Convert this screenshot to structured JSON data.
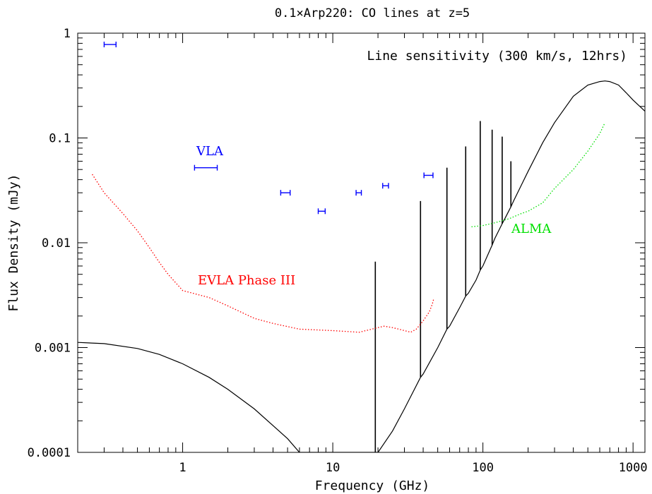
{
  "chart_data": {
    "type": "line",
    "title": "0.1×Arp220:  CO lines at z=5",
    "xlabel": "Frequency (GHz)",
    "ylabel": "Flux Density (mJy)",
    "xscale": "log",
    "yscale": "log",
    "xlim": [
      0.2,
      1200
    ],
    "ylim": [
      0.0001,
      1
    ],
    "xticks": [
      {
        "value": 1,
        "label": "1"
      },
      {
        "value": 10,
        "label": "10"
      },
      {
        "value": 100,
        "label": "100"
      },
      {
        "value": 1000,
        "label": "1000"
      }
    ],
    "yticks": [
      {
        "value": 0.0001,
        "label": "0.0001"
      },
      {
        "value": 0.001,
        "label": "0.001"
      },
      {
        "value": 0.01,
        "label": "0.01"
      },
      {
        "value": 0.1,
        "label": "0.1"
      },
      {
        "value": 1,
        "label": "1"
      }
    ],
    "annotation": "Line sensitivity (300 km/s, 12hrs)",
    "colors": {
      "model": "#000000",
      "vla": "#0000ff",
      "evla": "#ff0000",
      "alma": "#00e000"
    },
    "series": [
      {
        "key": "model",
        "style": "solid",
        "x": [
          0.2,
          0.3,
          0.5,
          0.7,
          1,
          1.5,
          2,
          3,
          4,
          5,
          6,
          8,
          10,
          12,
          15,
          18,
          19.2,
          20,
          25,
          30,
          38.4,
          40,
          50,
          57.6,
          60,
          70,
          76.8,
          80,
          90,
          96,
          100,
          115.2,
          120,
          134.4,
          140,
          153.6,
          160,
          200,
          250,
          300,
          400,
          500,
          600,
          650,
          700,
          800,
          900,
          1000,
          1200
        ],
        "y": [
          0.00112,
          0.00109,
          0.00098,
          0.00086,
          0.0007,
          0.00052,
          0.0004,
          0.00026,
          0.00018,
          0.000135,
          0.0001,
          0.0001,
          0.0001,
          0.0001,
          0.0001,
          0.0001,
          0.0001,
          0.0001,
          0.00016,
          0.00026,
          0.00052,
          0.00056,
          0.001,
          0.0015,
          0.0016,
          0.0024,
          0.0031,
          0.0033,
          0.0044,
          0.0055,
          0.006,
          0.0095,
          0.011,
          0.0152,
          0.017,
          0.022,
          0.025,
          0.048,
          0.09,
          0.14,
          0.25,
          0.32,
          0.345,
          0.35,
          0.345,
          0.32,
          0.27,
          0.23,
          0.18
        ],
        "lines": [
          {
            "x": 19.2,
            "peak": 0.0066
          },
          {
            "x": 38.4,
            "peak": 0.025
          },
          {
            "x": 57.6,
            "peak": 0.052
          },
          {
            "x": 76.8,
            "peak": 0.083
          },
          {
            "x": 96,
            "peak": 0.145
          },
          {
            "x": 115.2,
            "peak": 0.12
          },
          {
            "x": 134.4,
            "peak": 0.103
          },
          {
            "x": 153.6,
            "peak": 0.06
          }
        ]
      },
      {
        "key": "vla",
        "label": "VLA",
        "style": "errorbars",
        "points": [
          {
            "x": 0.33,
            "xlo": 0.3,
            "xhi": 0.36,
            "y": 0.78
          },
          {
            "x": 1.43,
            "xlo": 1.2,
            "xhi": 1.7,
            "y": 0.052
          },
          {
            "x": 4.86,
            "xlo": 4.5,
            "xhi": 5.2,
            "y": 0.03
          },
          {
            "x": 8.46,
            "xlo": 8.0,
            "xhi": 8.9,
            "y": 0.02
          },
          {
            "x": 14.9,
            "xlo": 14.3,
            "xhi": 15.5,
            "y": 0.03
          },
          {
            "x": 22.5,
            "xlo": 21.5,
            "xhi": 23.5,
            "y": 0.035
          },
          {
            "x": 43.3,
            "xlo": 40.5,
            "xhi": 46.5,
            "y": 0.044
          }
        ]
      },
      {
        "key": "evla",
        "label": "EVLA Phase III",
        "style": "dotted",
        "x": [
          0.25,
          0.3,
          0.4,
          0.5,
          0.6,
          0.7,
          0.8,
          1.0,
          1.5,
          2.0,
          3.0,
          4.0,
          6.0,
          10,
          15,
          20,
          22,
          25,
          30,
          33,
          36,
          40,
          44,
          46,
          47
        ],
        "y": [
          0.045,
          0.03,
          0.019,
          0.013,
          0.009,
          0.0065,
          0.005,
          0.0035,
          0.003,
          0.0025,
          0.0019,
          0.0017,
          0.0015,
          0.00145,
          0.0014,
          0.00155,
          0.0016,
          0.00155,
          0.00145,
          0.0014,
          0.0015,
          0.0018,
          0.0022,
          0.0026,
          0.0029
        ]
      },
      {
        "key": "alma",
        "label": "ALMA",
        "style": "dotted",
        "x": [
          84,
          100,
          120,
          150,
          180,
          200,
          250,
          300,
          400,
          500,
          600,
          650
        ],
        "y": [
          0.0142,
          0.0146,
          0.0155,
          0.017,
          0.019,
          0.02,
          0.024,
          0.033,
          0.05,
          0.075,
          0.11,
          0.14
        ]
      }
    ]
  }
}
